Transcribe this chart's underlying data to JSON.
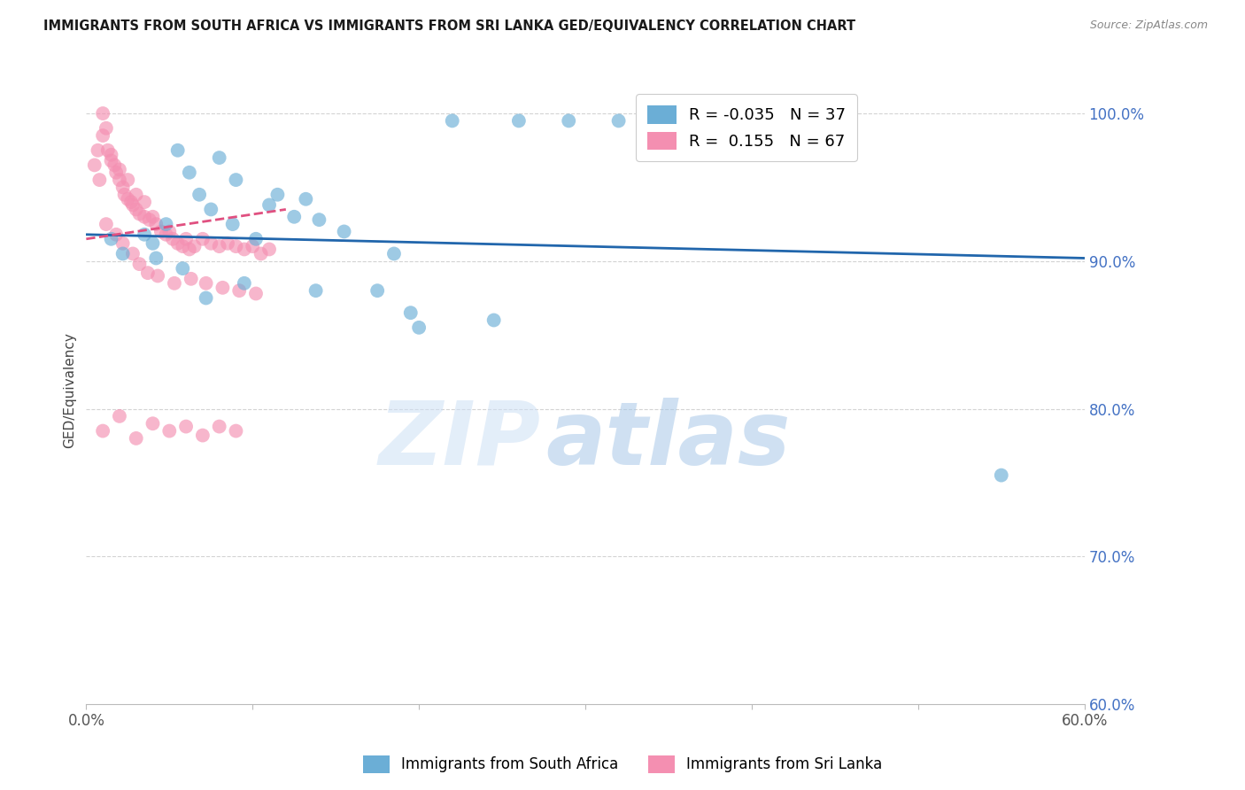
{
  "title": "IMMIGRANTS FROM SOUTH AFRICA VS IMMIGRANTS FROM SRI LANKA GED/EQUIVALENCY CORRELATION CHART",
  "source": "Source: ZipAtlas.com",
  "ylabel": "GED/Equivalency",
  "right_yticks": [
    60.0,
    70.0,
    80.0,
    90.0,
    100.0
  ],
  "xmin": 0.0,
  "xmax": 60.0,
  "ymin": 60.0,
  "ymax": 102.5,
  "R_blue": -0.035,
  "N_blue": 37,
  "R_pink": 0.155,
  "N_pink": 67,
  "blue_color": "#6baed6",
  "pink_color": "#f48fb1",
  "blue_line_color": "#2166ac",
  "pink_line_color": "#e05080",
  "grid_color": "#c8c8c8",
  "blue_scatter_x": [
    1.5,
    2.2,
    3.5,
    4.2,
    4.8,
    5.5,
    6.2,
    6.8,
    7.5,
    8.0,
    8.8,
    9.5,
    10.2,
    11.5,
    12.5,
    13.2,
    14.0,
    15.5,
    17.5,
    18.5,
    20.0,
    22.0,
    24.5,
    26.0,
    29.0,
    32.0,
    34.0,
    36.5,
    38.0,
    55.0,
    13.8,
    7.2,
    5.8,
    4.0,
    9.0,
    11.0,
    19.5
  ],
  "blue_scatter_y": [
    91.5,
    90.5,
    91.8,
    90.2,
    92.5,
    97.5,
    96.0,
    94.5,
    93.5,
    97.0,
    92.5,
    88.5,
    91.5,
    94.5,
    93.0,
    94.2,
    92.8,
    92.0,
    88.0,
    90.5,
    85.5,
    99.5,
    86.0,
    99.5,
    99.5,
    99.5,
    99.5,
    99.5,
    99.5,
    75.5,
    88.0,
    87.5,
    89.5,
    91.2,
    95.5,
    93.8,
    86.5
  ],
  "pink_scatter_x": [
    0.5,
    0.7,
    0.8,
    1.0,
    1.0,
    1.2,
    1.3,
    1.5,
    1.5,
    1.7,
    1.8,
    2.0,
    2.0,
    2.2,
    2.3,
    2.5,
    2.5,
    2.7,
    2.8,
    3.0,
    3.0,
    3.2,
    3.5,
    3.5,
    3.8,
    4.0,
    4.2,
    4.5,
    4.8,
    5.0,
    5.2,
    5.5,
    5.8,
    6.0,
    6.2,
    6.5,
    7.0,
    7.5,
    8.0,
    8.5,
    9.0,
    9.5,
    10.0,
    10.5,
    11.0,
    1.2,
    1.8,
    2.2,
    2.8,
    3.2,
    3.7,
    4.3,
    5.3,
    6.3,
    7.2,
    8.2,
    9.2,
    10.2,
    1.0,
    2.0,
    3.0,
    4.0,
    5.0,
    6.0,
    7.0,
    8.0,
    9.0
  ],
  "pink_scatter_y": [
    96.5,
    97.5,
    95.5,
    100.0,
    98.5,
    99.0,
    97.5,
    97.2,
    96.8,
    96.5,
    96.0,
    95.5,
    96.2,
    95.0,
    94.5,
    94.2,
    95.5,
    94.0,
    93.8,
    93.5,
    94.5,
    93.2,
    93.0,
    94.0,
    92.8,
    93.0,
    92.5,
    92.0,
    91.8,
    92.0,
    91.5,
    91.2,
    91.0,
    91.5,
    90.8,
    91.0,
    91.5,
    91.2,
    91.0,
    91.2,
    91.0,
    90.8,
    91.0,
    90.5,
    90.8,
    92.5,
    91.8,
    91.2,
    90.5,
    89.8,
    89.2,
    89.0,
    88.5,
    88.8,
    88.5,
    88.2,
    88.0,
    87.8,
    78.5,
    79.5,
    78.0,
    79.0,
    78.5,
    78.8,
    78.2,
    78.8,
    78.5
  ],
  "blue_trend_x": [
    0.0,
    60.0
  ],
  "blue_trend_y": [
    91.8,
    90.2
  ],
  "pink_trend_x": [
    0.0,
    12.0
  ],
  "pink_trend_y": [
    91.5,
    93.5
  ],
  "legend_R_blue": "R = -0.035",
  "legend_N_blue": "N = 37",
  "legend_R_pink": "R =  0.155",
  "legend_N_pink": "N = 67"
}
